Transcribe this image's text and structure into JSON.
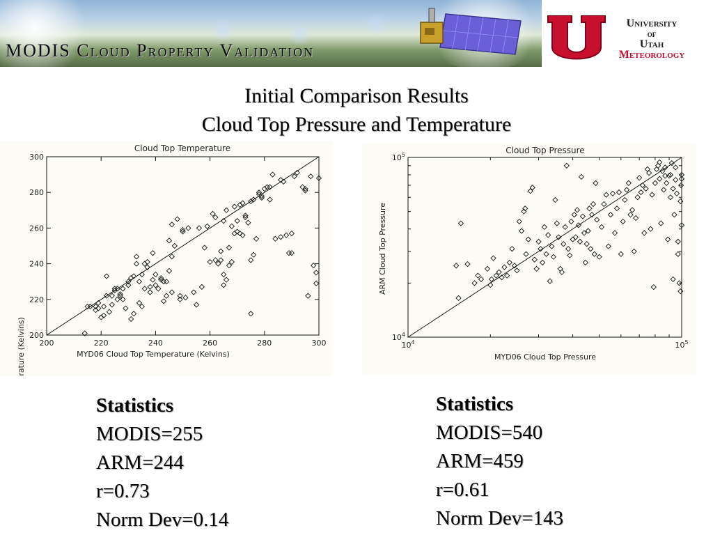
{
  "banner": {
    "title": "MODIS Cloud Property Validation"
  },
  "university": {
    "line1": "University",
    "line2": "of",
    "line3": "Utah",
    "line4": "Meteorology"
  },
  "headings": {
    "line1": "Initial Comparison Results",
    "line2": "Cloud Top Pressure and Temperature"
  },
  "colors": {
    "utah_red": "#c8102e",
    "plot_bg": "#fcfbf6",
    "text": "#000000"
  },
  "chart_data": [
    {
      "type": "scatter",
      "title": "Cloud Top Temperature",
      "xlabel": "MYD06 Cloud Top Temperature (Kelvins)",
      "ylabel": "ARM Cloud Top Temperature (Kelvins)",
      "xlim": [
        200,
        300
      ],
      "ylim": [
        200,
        300
      ],
      "xticks": [
        "200",
        "220",
        "240",
        "260",
        "280",
        "300"
      ],
      "yticks": [
        "200",
        "220",
        "240",
        "260",
        "280",
        "300"
      ],
      "marker": "diamond",
      "reference_line": "one-to-one",
      "points": [
        [
          214,
          201
        ],
        [
          215,
          216
        ],
        [
          216,
          216
        ],
        [
          218,
          216
        ],
        [
          218,
          214
        ],
        [
          219,
          215
        ],
        [
          219,
          218
        ],
        [
          220,
          210
        ],
        [
          221,
          211
        ],
        [
          221,
          216
        ],
        [
          222,
          222
        ],
        [
          222,
          233
        ],
        [
          223,
          213
        ],
        [
          224,
          217
        ],
        [
          224,
          222
        ],
        [
          225,
          225
        ],
        [
          225,
          226
        ],
        [
          226,
          226
        ],
        [
          226,
          220
        ],
        [
          227,
          223
        ],
        [
          227,
          222
        ],
        [
          228,
          220
        ],
        [
          228,
          226
        ],
        [
          229,
          215
        ],
        [
          230,
          228
        ],
        [
          230,
          230
        ],
        [
          231,
          232
        ],
        [
          231,
          209
        ],
        [
          232,
          212
        ],
        [
          232,
          233
        ],
        [
          233,
          244
        ],
        [
          233,
          240
        ],
        [
          234,
          218
        ],
        [
          234,
          230
        ],
        [
          235,
          234
        ],
        [
          235,
          216
        ],
        [
          236,
          240
        ],
        [
          236,
          226
        ],
        [
          237,
          238
        ],
        [
          237,
          241
        ],
        [
          238,
          224
        ],
        [
          238,
          227
        ],
        [
          239,
          246
        ],
        [
          239,
          231
        ],
        [
          240,
          234
        ],
        [
          240,
          228
        ],
        [
          241,
          226
        ],
        [
          242,
          232
        ],
        [
          242,
          231
        ],
        [
          243,
          230
        ],
        [
          243,
          219
        ],
        [
          244,
          222
        ],
        [
          244,
          230
        ],
        [
          245,
          236
        ],
        [
          245,
          253
        ],
        [
          246,
          262
        ],
        [
          246,
          244
        ],
        [
          246,
          224
        ],
        [
          247,
          250
        ],
        [
          248,
          265
        ],
        [
          249,
          220
        ],
        [
          249,
          222
        ],
        [
          250,
          258
        ],
        [
          250,
          259
        ],
        [
          251,
          221
        ],
        [
          252,
          260
        ],
        [
          254,
          224
        ],
        [
          255,
          217
        ],
        [
          256,
          260
        ],
        [
          257,
          227
        ],
        [
          258,
          249
        ],
        [
          259,
          261
        ],
        [
          260,
          241
        ],
        [
          261,
          268
        ],
        [
          262,
          266
        ],
        [
          262,
          242
        ],
        [
          263,
          240
        ],
        [
          264,
          242
        ],
        [
          264,
          247
        ],
        [
          265,
          234
        ],
        [
          265,
          228
        ],
        [
          265,
          264
        ],
        [
          266,
          270
        ],
        [
          266,
          231
        ],
        [
          267,
          239
        ],
        [
          267,
          249
        ],
        [
          268,
          241
        ],
        [
          268,
          261
        ],
        [
          269,
          257
        ],
        [
          269,
          272
        ],
        [
          270,
          258
        ],
        [
          270,
          264
        ],
        [
          271,
          257
        ],
        [
          271,
          273
        ],
        [
          272,
          274
        ],
        [
          272,
          256
        ],
        [
          273,
          266
        ],
        [
          273,
          267
        ],
        [
          274,
          263
        ],
        [
          275,
          275
        ],
        [
          275,
          242
        ],
        [
          275,
          212
        ],
        [
          276,
          276
        ],
        [
          276,
          245
        ],
        [
          277,
          254
        ],
        [
          278,
          280
        ],
        [
          278,
          279
        ],
        [
          279,
          278
        ],
        [
          279,
          277
        ],
        [
          280,
          282
        ],
        [
          281,
          283
        ],
        [
          282,
          276
        ],
        [
          282,
          283
        ],
        [
          283,
          290
        ],
        [
          284,
          254
        ],
        [
          286,
          255
        ],
        [
          286,
          287
        ],
        [
          287,
          286
        ],
        [
          288,
          256
        ],
        [
          289,
          246
        ],
        [
          290,
          246
        ],
        [
          290,
          257
        ],
        [
          291,
          289
        ],
        [
          292,
          291
        ],
        [
          294,
          283
        ],
        [
          295,
          281
        ],
        [
          295,
          282
        ],
        [
          296,
          222
        ],
        [
          297,
          289
        ],
        [
          298,
          239
        ],
        [
          299,
          229
        ],
        [
          299,
          235
        ],
        [
          300,
          288
        ]
      ]
    },
    {
      "type": "scatter",
      "title": "Cloud Top Pressure",
      "xlabel": "MYD06 Cloud Top Pressure",
      "ylabel": "ARM Cloud Top Pressure",
      "xscale": "log",
      "yscale": "log",
      "xlim": [
        10000,
        100000
      ],
      "ylim": [
        10000,
        100000
      ],
      "xtick_base": "10",
      "xtick_exps": [
        "4",
        "5"
      ],
      "ytick_base": "10",
      "ytick_exps": [
        "4",
        "5"
      ],
      "marker": "diamond",
      "reference_line": "one-to-one",
      "points": [
        [
          15000,
          25000
        ],
        [
          15300,
          16500
        ],
        [
          15600,
          43000
        ],
        [
          16500,
          25500
        ],
        [
          17500,
          20000
        ],
        [
          18000,
          22000
        ],
        [
          18500,
          21000
        ],
        [
          19500,
          24000
        ],
        [
          20000,
          19500
        ],
        [
          20200,
          21000
        ],
        [
          20500,
          27500
        ],
        [
          21000,
          22000
        ],
        [
          21500,
          23000
        ],
        [
          22000,
          21500
        ],
        [
          22500,
          24500
        ],
        [
          23000,
          22000
        ],
        [
          23500,
          26000
        ],
        [
          24000,
          31000
        ],
        [
          24500,
          25000
        ],
        [
          25000,
          23500
        ],
        [
          25500,
          44000
        ],
        [
          26000,
          39000
        ],
        [
          26500,
          50000
        ],
        [
          26800,
          52000
        ],
        [
          27000,
          29000
        ],
        [
          27500,
          35000
        ],
        [
          28000,
          65000
        ],
        [
          28500,
          68000
        ],
        [
          29000,
          27000
        ],
        [
          29500,
          24000
        ],
        [
          30000,
          34000
        ],
        [
          30500,
          31000
        ],
        [
          31000,
          26000
        ],
        [
          31500,
          41000
        ],
        [
          32000,
          29000
        ],
        [
          32500,
          37000
        ],
        [
          33000,
          20500
        ],
        [
          33500,
          32000
        ],
        [
          34000,
          28000
        ],
        [
          34500,
          58000
        ],
        [
          35000,
          43000
        ],
        [
          35500,
          36000
        ],
        [
          36000,
          24000
        ],
        [
          36500,
          23000
        ],
        [
          37000,
          33000
        ],
        [
          37500,
          41000
        ],
        [
          38000,
          90000
        ],
        [
          38500,
          31000
        ],
        [
          39000,
          28500
        ],
        [
          39500,
          44000
        ],
        [
          40000,
          35000
        ],
        [
          40500,
          48000
        ],
        [
          41000,
          36000
        ],
        [
          41500,
          51000
        ],
        [
          42000,
          42000
        ],
        [
          42500,
          34000
        ],
        [
          43000,
          78000
        ],
        [
          43500,
          47000
        ],
        [
          44000,
          38000
        ],
        [
          44500,
          26000
        ],
        [
          45000,
          33000
        ],
        [
          45500,
          39000
        ],
        [
          46000,
          52000
        ],
        [
          46500,
          31000
        ],
        [
          47000,
          48000
        ],
        [
          47500,
          55000
        ],
        [
          48000,
          29000
        ],
        [
          48500,
          72000
        ],
        [
          49000,
          45000
        ],
        [
          50000,
          28000
        ],
        [
          51000,
          41000
        ],
        [
          52000,
          55000
        ],
        [
          53000,
          62000
        ],
        [
          54000,
          32000
        ],
        [
          55000,
          48000
        ],
        [
          56000,
          63000
        ],
        [
          57000,
          38000
        ],
        [
          58000,
          52000
        ],
        [
          59000,
          64000
        ],
        [
          60000,
          29000
        ],
        [
          61000,
          44000
        ],
        [
          62000,
          58000
        ],
        [
          63000,
          66000
        ],
        [
          64000,
          72000
        ],
        [
          65000,
          48000
        ],
        [
          66000,
          51000
        ],
        [
          67000,
          30000
        ],
        [
          68000,
          46000
        ],
        [
          69000,
          60000
        ],
        [
          70000,
          77000
        ],
        [
          71000,
          64000
        ],
        [
          72000,
          70000
        ],
        [
          73000,
          38000
        ],
        [
          74000,
          67000
        ],
        [
          75000,
          86000
        ],
        [
          76000,
          82000
        ],
        [
          77000,
          40000
        ],
        [
          78000,
          62000
        ],
        [
          79000,
          19000
        ],
        [
          80000,
          72000
        ],
        [
          81000,
          86000
        ],
        [
          82000,
          90000
        ],
        [
          83000,
          76000
        ],
        [
          84000,
          43000
        ],
        [
          85000,
          84000
        ],
        [
          86000,
          66000
        ],
        [
          87000,
          88000
        ],
        [
          88000,
          72000
        ],
        [
          89000,
          35000
        ],
        [
          90000,
          79000
        ],
        [
          91000,
          80000
        ],
        [
          92000,
          93000
        ],
        [
          93000,
          21000
        ],
        [
          94000,
          48000
        ],
        [
          95000,
          75000
        ],
        [
          96000,
          63000
        ],
        [
          97000,
          34000
        ],
        [
          98000,
          20000
        ],
        [
          99000,
          57000
        ],
        [
          99500,
          70000
        ],
        [
          100000,
          80000
        ],
        [
          100000,
          76000
        ],
        [
          100000,
          42000
        ],
        [
          99000,
          18000
        ],
        [
          97000,
          29000
        ],
        [
          95000,
          88000
        ],
        [
          93000,
          67000
        ],
        [
          91000,
          60000
        ],
        [
          87000,
          79000
        ],
        [
          83000,
          94000
        ]
      ]
    }
  ],
  "stats_left": {
    "title": "Statistics",
    "modis": "MODIS=255",
    "arm": "ARM=244",
    "r": "r=0.73",
    "normdev": "Norm Dev=0.14"
  },
  "stats_right": {
    "title": "Statistics",
    "modis": "MODIS=540",
    "arm": "ARM=459",
    "r": "r=0.61",
    "normdev": "Norm Dev=143"
  }
}
